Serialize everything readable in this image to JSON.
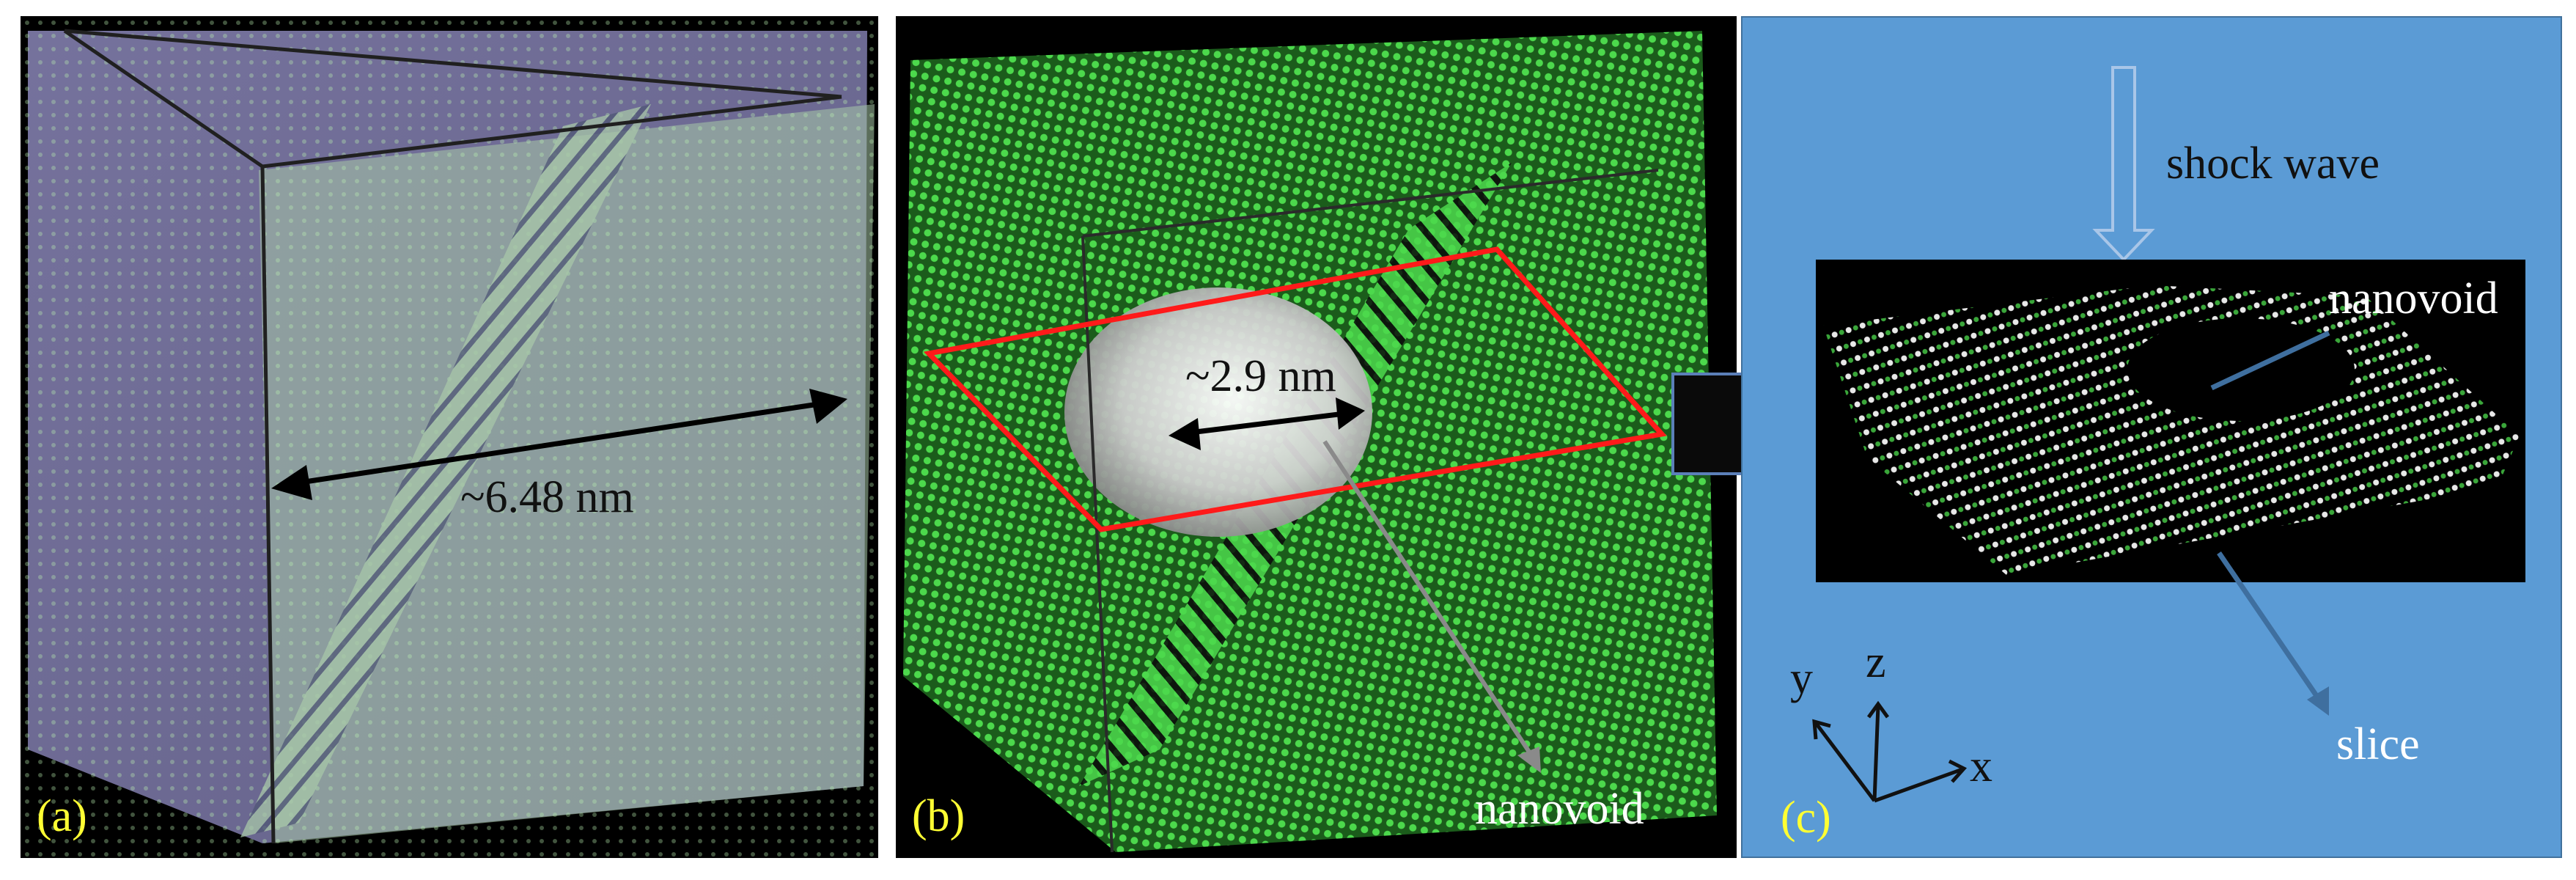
{
  "panels": {
    "a": {
      "letter": "(a)",
      "dimension_label": "~6.48 nm"
    },
    "b": {
      "letter": "(b)",
      "dimension_label": "~2.9 nm",
      "void_label": "nanovoid"
    },
    "c": {
      "letter": "(c)",
      "shock_label": "shock wave",
      "void_label": "nanovoid",
      "slice_label": "slice",
      "axes": {
        "x": "x",
        "y": "y",
        "z": "z"
      }
    }
  },
  "colors": {
    "atom_green": "#4cd94c",
    "atom_pale": "#c8f0c8",
    "box_overlay": "#8a86b8",
    "slice_plane": "#ff1a1a",
    "panel_c_background": "#5b9bd5",
    "panel_letter": "#ffff33",
    "arrow_dark_blue": "#1f2f4f"
  }
}
